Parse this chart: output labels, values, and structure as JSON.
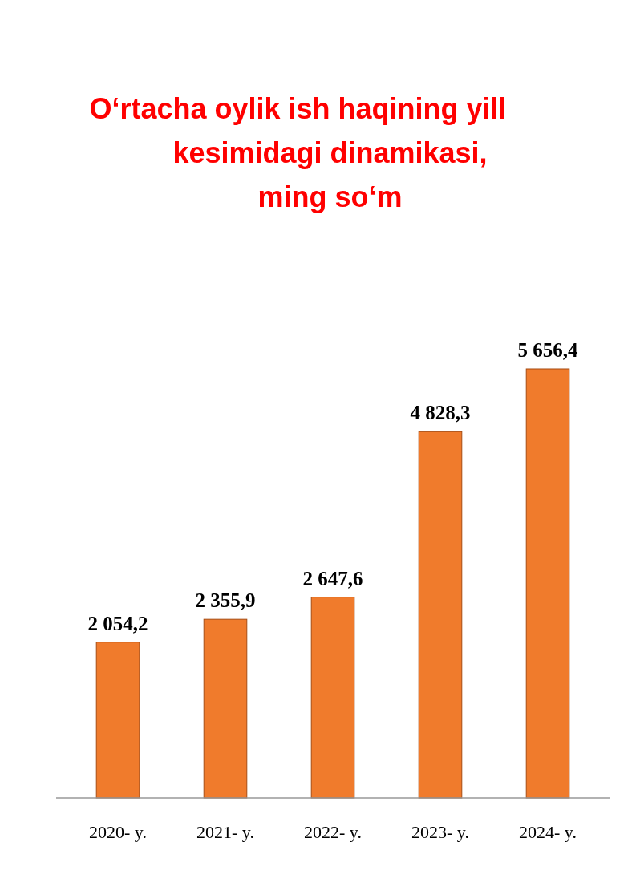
{
  "chart_data": {
    "type": "bar",
    "title": "O‘rtacha oylik ish haqining yill\nkesimidagi dinamikasi,\nming so‘m",
    "categories": [
      "2020- y.",
      "2021- y.",
      "2022- y.",
      "2023- y.",
      "2024- y."
    ],
    "values": [
      2054.2,
      2355.9,
      2647.6,
      4828.3,
      5656.4
    ],
    "value_labels": [
      "2 054,2",
      "2 355,9",
      "2 647,6",
      "4 828,3",
      "5 656,4"
    ],
    "color": "#f07b2c"
  }
}
